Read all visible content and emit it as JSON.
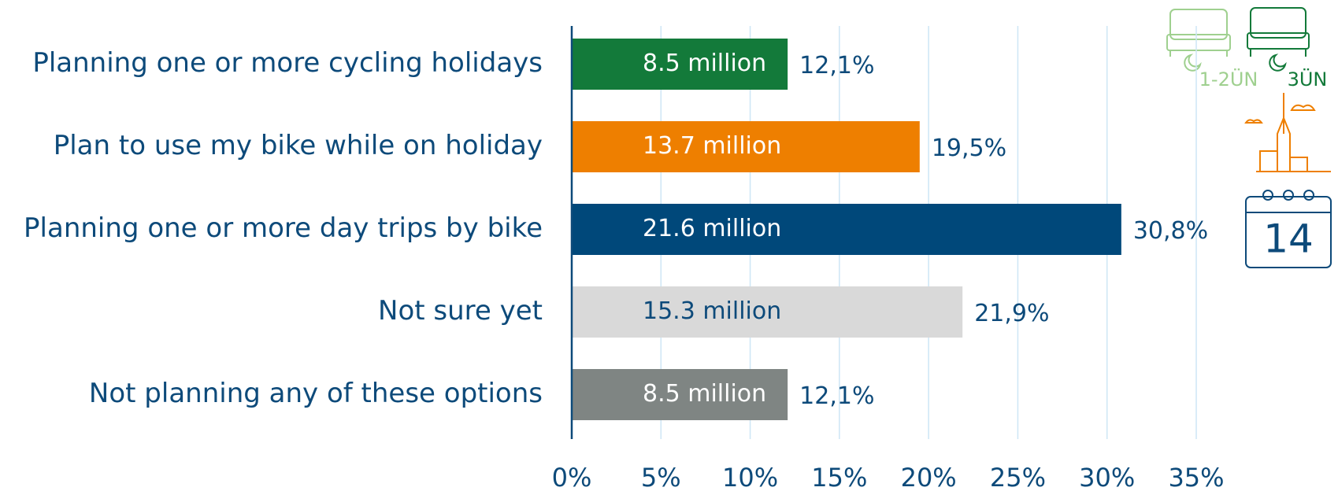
{
  "chart_data": {
    "type": "hbar",
    "categories": [
      "Planning one or more cycling holidays",
      "Plan to use my bike while on holiday",
      "Planning one or more day trips by bike",
      "Not sure yet",
      "Not planning any of these options"
    ],
    "values": [
      12.1,
      19.5,
      30.8,
      21.9,
      12.1
    ],
    "value_labels": [
      "12,1%",
      "19,5%",
      "30,8%",
      "21,9%",
      "12,1%"
    ],
    "inner_values": [
      8.5,
      13.7,
      21.6,
      15.3,
      8.5
    ],
    "inner_value_labels": [
      "8.5 million",
      "13.7 million",
      "21.6 million",
      "15.3 million",
      "8.5 million"
    ],
    "colors": [
      "#137a3a",
      "#ee7f00",
      "#00487a",
      "#d9d9d9",
      "#7f8583"
    ],
    "inner_label_colors": [
      "#ffffff",
      "#ffffff",
      "#ffffff",
      "#0d4a7a",
      "#ffffff"
    ],
    "xlim": [
      0,
      35
    ],
    "xticks": [
      {
        "value": 0,
        "label": "0%"
      },
      {
        "value": 5,
        "label": "5%"
      },
      {
        "value": 10,
        "label": "10%"
      },
      {
        "value": 15,
        "label": "15%"
      },
      {
        "value": 20,
        "label": "20%"
      },
      {
        "value": 25,
        "label": "25%"
      },
      {
        "value": 30,
        "label": "30%"
      },
      {
        "value": 35,
        "label": "35%"
      }
    ],
    "grid": true,
    "icon_labels": [
      "1-2ÜN",
      "3ÜN",
      "14"
    ]
  }
}
